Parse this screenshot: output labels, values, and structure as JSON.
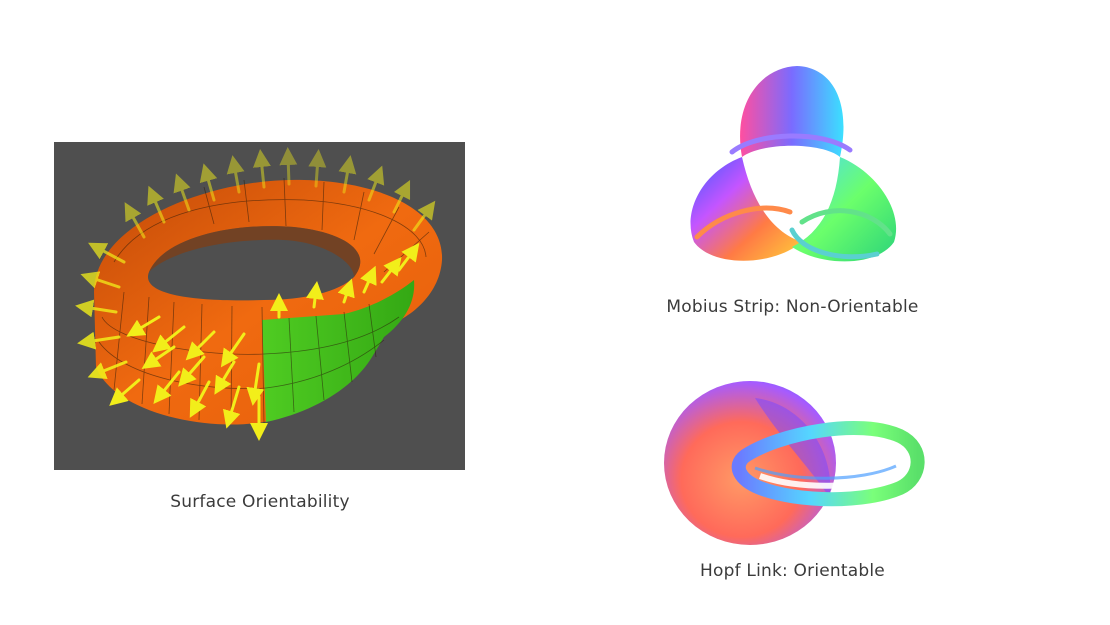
{
  "captions": {
    "surface": "Surface Orientability",
    "mobius": "Mobius Strip: Non-Orientable",
    "hopf": "Hopf Link: Orientable"
  },
  "colors": {
    "panel_background": "#4f4f4f",
    "strip_orange": "#f06a10",
    "strip_green": "#3fbf1c",
    "arrow_yellow": "#f2ee1a",
    "caption_text": "#3b3b3b"
  }
}
